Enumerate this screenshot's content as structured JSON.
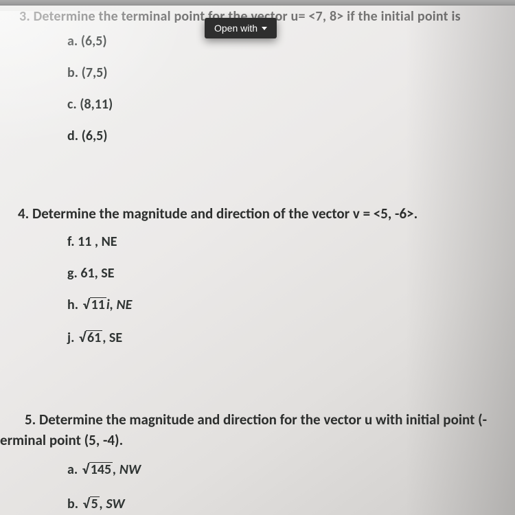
{
  "ui": {
    "open_with_label": "Open with"
  },
  "q3": {
    "text": "3. Determine the terminal point for the vector u= <7, 8> if the initial point is",
    "options": {
      "a": "a. (6,5)",
      "b": "b. (7,5)",
      "c": "c. (8,11)",
      "d": "d. (6,5)"
    }
  },
  "q4": {
    "text": "4.  Determine the magnitude and direction of the vector v = <5, -6>.",
    "options": {
      "f": "f. 11 , NE",
      "g": "g. 61, SE",
      "h_prefix": "h. ",
      "h_root": "11",
      "h_suffix": "i, NE",
      "j_prefix": "j. ",
      "j_root": "61",
      "j_suffix": ", SE"
    }
  },
  "q5": {
    "line1": "5.  Determine the magnitude and direction for the vector u with initial point (-",
    "line2": "erminal point (5, -4).",
    "options": {
      "a_prefix": "a. ",
      "a_root": "145",
      "a_suffix": ", NW",
      "b_prefix": "b. ",
      "b_root": "5",
      "b_suffix": ", SW"
    }
  },
  "style": {
    "font_bold_color": "#2c2e2d",
    "bg": "#eceae9"
  }
}
